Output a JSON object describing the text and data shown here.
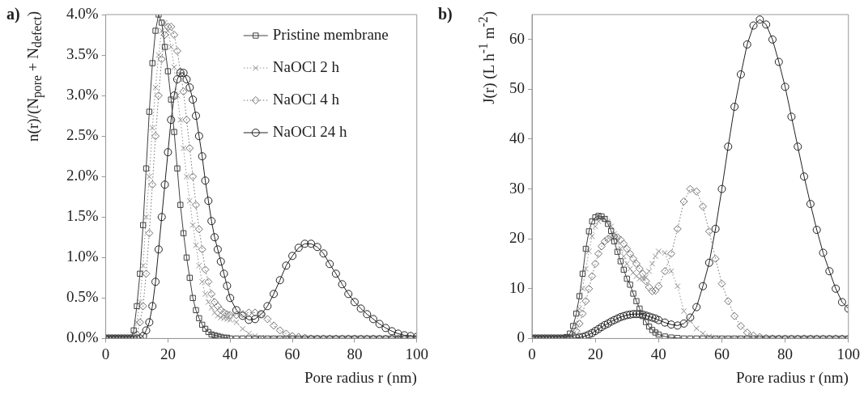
{
  "chart_data": [
    {
      "type": "line",
      "title": "a)",
      "xlabel": "Pore radius r (nm)",
      "ylabel": "n(r)/(N$_{pore}$ + N$_{defect}$)",
      "legend": "top right",
      "x": [
        0,
        1,
        2,
        3,
        4,
        5,
        6,
        7,
        8,
        9,
        10,
        11,
        12,
        13,
        14,
        15,
        16,
        17,
        18,
        19,
        20,
        21,
        22,
        23,
        24,
        25,
        26,
        27,
        28,
        29,
        30,
        31,
        32,
        33,
        34,
        35,
        36,
        37,
        38,
        39,
        40,
        42,
        44,
        46,
        48,
        50,
        52,
        54,
        56,
        58,
        60,
        62,
        64,
        66,
        68,
        70,
        72,
        74,
        76,
        78,
        80,
        82,
        84,
        86,
        88,
        90,
        92,
        94,
        96,
        98,
        100
      ],
      "xlim": [
        0,
        100
      ],
      "xticks": [
        0,
        20,
        40,
        60,
        80,
        100
      ],
      "ylim": [
        0,
        4
      ],
      "yticks": [
        {
          "value": 0,
          "label": "0.0%"
        },
        {
          "value": 0.5,
          "label": "0.5%"
        },
        {
          "value": 1,
          "label": "1.0%"
        },
        {
          "value": 1.5,
          "label": "1.5%"
        },
        {
          "value": 2,
          "label": "2.0%"
        },
        {
          "value": 2.5,
          "label": "2.5%"
        },
        {
          "value": 3,
          "label": "3.0%"
        },
        {
          "value": 3.5,
          "label": "3.5%"
        },
        {
          "value": 4,
          "label": "4.0%"
        }
      ],
      "series": [
        {
          "name": "Pristine membrane",
          "color": "#404040",
          "marker": "square",
          "line_style": "solid",
          "values": [
            0,
            0,
            0,
            0,
            0,
            0,
            0,
            0,
            0,
            0.1,
            0.4,
            0.8,
            1.4,
            2.1,
            2.8,
            3.4,
            3.8,
            4.0,
            3.9,
            3.6,
            3.3,
            2.95,
            2.55,
            2.1,
            1.65,
            1.3,
            1.0,
            0.75,
            0.5,
            0.35,
            0.25,
            0.17,
            0.12,
            0.08,
            0.05,
            0.04,
            0.03,
            0.02,
            0.01,
            0.01,
            0,
            0,
            0,
            0,
            0,
            0,
            0,
            0,
            0,
            0,
            0,
            0,
            0,
            0,
            0,
            0,
            0,
            0,
            0,
            0,
            0,
            0,
            0,
            0,
            0,
            0,
            0,
            0,
            0,
            0,
            0
          ]
        },
        {
          "name": "NaOCl 2 h",
          "color": "#909090",
          "marker": "cross",
          "line_style": "dotted",
          "values": [
            0,
            0,
            0,
            0,
            0,
            0,
            0,
            0,
            0,
            0.05,
            0.2,
            0.45,
            0.9,
            1.5,
            2.0,
            2.6,
            3.1,
            3.5,
            3.8,
            3.9,
            3.8,
            3.6,
            3.35,
            3.0,
            2.7,
            2.35,
            2.0,
            1.7,
            1.4,
            1.15,
            0.9,
            0.7,
            0.55,
            0.45,
            0.38,
            0.32,
            0.28,
            0.26,
            0.25,
            0.24,
            0.23,
            0.2,
            0.12,
            0.06,
            0.03,
            0.01,
            0,
            0,
            0,
            0,
            0,
            0,
            0,
            0,
            0,
            0,
            0,
            0,
            0,
            0,
            0,
            0,
            0,
            0,
            0,
            0,
            0,
            0,
            0,
            0,
            0
          ]
        },
        {
          "name": "NaOCl 4 h",
          "color": "#707070",
          "marker": "diamond",
          "line_style": "dotted",
          "values": [
            0,
            0,
            0,
            0,
            0,
            0,
            0,
            0,
            0,
            0,
            0.05,
            0.2,
            0.4,
            0.8,
            1.3,
            1.9,
            2.5,
            3.0,
            3.45,
            3.75,
            3.85,
            3.85,
            3.75,
            3.55,
            3.3,
            3.05,
            2.7,
            2.35,
            2.0,
            1.65,
            1.35,
            1.1,
            0.85,
            0.7,
            0.55,
            0.45,
            0.4,
            0.35,
            0.32,
            0.3,
            0.29,
            0.29,
            0.3,
            0.32,
            0.32,
            0.3,
            0.24,
            0.16,
            0.1,
            0.06,
            0.03,
            0.02,
            0.01,
            0,
            0,
            0,
            0,
            0,
            0,
            0,
            0,
            0,
            0,
            0,
            0,
            0,
            0,
            0,
            0,
            0,
            0
          ]
        },
        {
          "name": "NaOCl 24 h",
          "color": "#202020",
          "marker": "circle",
          "line_style": "solid",
          "values": [
            0,
            0,
            0,
            0,
            0,
            0,
            0,
            0,
            0,
            0,
            0,
            0,
            0.03,
            0.1,
            0.2,
            0.4,
            0.7,
            1.1,
            1.5,
            1.9,
            2.3,
            2.7,
            3.0,
            3.2,
            3.28,
            3.28,
            3.2,
            3.1,
            2.95,
            2.75,
            2.5,
            2.25,
            1.95,
            1.7,
            1.45,
            1.25,
            1.1,
            0.95,
            0.8,
            0.65,
            0.5,
            0.35,
            0.28,
            0.23,
            0.24,
            0.3,
            0.4,
            0.55,
            0.72,
            0.9,
            1.02,
            1.12,
            1.17,
            1.17,
            1.13,
            1.05,
            0.92,
            0.8,
            0.67,
            0.55,
            0.45,
            0.37,
            0.3,
            0.24,
            0.18,
            0.13,
            0.09,
            0.06,
            0.04,
            0.03,
            0.02
          ]
        }
      ]
    },
    {
      "type": "line",
      "title": "b)",
      "xlabel": "Pore radius r (nm)",
      "ylabel": "J(r) (L h$^{-1}$ m$^{-2}$)",
      "x": [
        0,
        1,
        2,
        3,
        4,
        5,
        6,
        7,
        8,
        9,
        10,
        11,
        12,
        13,
        14,
        15,
        16,
        17,
        18,
        19,
        20,
        21,
        22,
        23,
        24,
        25,
        26,
        27,
        28,
        29,
        30,
        31,
        32,
        33,
        34,
        35,
        36,
        37,
        38,
        39,
        40,
        42,
        44,
        46,
        48,
        50,
        52,
        54,
        56,
        58,
        60,
        62,
        64,
        66,
        68,
        70,
        72,
        74,
        76,
        78,
        80,
        82,
        84,
        86,
        88,
        90,
        92,
        94,
        96,
        98,
        100
      ],
      "xlim": [
        0,
        100
      ],
      "xticks": [
        0,
        20,
        40,
        60,
        80,
        100
      ],
      "ylim": [
        0,
        65
      ],
      "yticks": [
        0,
        10,
        20,
        30,
        40,
        50,
        60
      ],
      "series": [
        {
          "color": "#404040",
          "marker": "square",
          "line_style": "solid",
          "values": [
            0,
            0,
            0,
            0,
            0,
            0,
            0,
            0,
            0,
            0,
            0,
            0.3,
            1,
            2.5,
            5,
            8.5,
            13,
            18,
            21.5,
            23.5,
            24.3,
            24.6,
            24.5,
            24,
            23,
            21.6,
            19.5,
            17.4,
            15.5,
            13.8,
            12,
            10.8,
            9,
            7.5,
            6,
            4.5,
            3.3,
            2.4,
            1.7,
            1.2,
            0.8,
            0.4,
            0.2,
            0.1,
            0,
            0,
            0,
            0,
            0,
            0,
            0,
            0,
            0,
            0,
            0,
            0,
            0,
            0,
            0,
            0,
            0,
            0,
            0,
            0,
            0,
            0,
            0,
            0,
            0,
            0,
            0
          ]
        },
        {
          "color": "#909090",
          "marker": "cross",
          "line_style": "dotted",
          "values": [
            0,
            0,
            0,
            0,
            0,
            0,
            0,
            0,
            0,
            0,
            0,
            0,
            0.3,
            1,
            3,
            6,
            10,
            14,
            17.5,
            20.5,
            22.5,
            23.5,
            24,
            24,
            23.5,
            22.5,
            21,
            19.5,
            18,
            16.5,
            15,
            14,
            13.2,
            12.5,
            12,
            12,
            12.3,
            13.5,
            15,
            16.5,
            17.5,
            17.2,
            13.5,
            10.5,
            5.5,
            3.5,
            2,
            1,
            0.4,
            0.1,
            0,
            0,
            0,
            0,
            0,
            0,
            0,
            0,
            0,
            0,
            0,
            0,
            0,
            0,
            0,
            0,
            0,
            0,
            0,
            0,
            0
          ]
        },
        {
          "color": "#707070",
          "marker": "diamond",
          "line_style": "dotted",
          "values": [
            0,
            0,
            0,
            0,
            0,
            0,
            0,
            0,
            0,
            0,
            0,
            0,
            0,
            0.5,
            1.5,
            3,
            5,
            7.5,
            10,
            12.5,
            15,
            17,
            18.5,
            19.5,
            20,
            20.4,
            20.5,
            20.3,
            19.8,
            19,
            18,
            17,
            16,
            15,
            14,
            13,
            11.5,
            10.3,
            9.5,
            9.6,
            10.5,
            13.5,
            17,
            22,
            27.5,
            30,
            29.5,
            26.5,
            21.5,
            16,
            11,
            7.5,
            4.5,
            2.5,
            1.2,
            0.6,
            0.3,
            0.1,
            0,
            0,
            0,
            0,
            0,
            0,
            0,
            0,
            0,
            0,
            0,
            0,
            0
          ]
        },
        {
          "color": "#202020",
          "marker": "circle",
          "line_style": "solid",
          "values": [
            0,
            0,
            0,
            0,
            0,
            0,
            0,
            0,
            0,
            0,
            0,
            0,
            0,
            0,
            0.1,
            0.2,
            0.3,
            0.5,
            0.8,
            1.1,
            1.5,
            1.9,
            2.3,
            2.7,
            3.0,
            3.4,
            3.7,
            4.0,
            4.3,
            4.5,
            4.7,
            4.8,
            4.9,
            4.9,
            4.9,
            4.8,
            4.6,
            4.4,
            4.2,
            4.0,
            3.7,
            3.2,
            2.8,
            2.6,
            3.0,
            4.2,
            6.3,
            10.5,
            15.2,
            22,
            30,
            38.5,
            46.5,
            53,
            59,
            62.8,
            64,
            63,
            60,
            55.5,
            50.5,
            44.5,
            38.5,
            32.5,
            27,
            21.8,
            17.2,
            13.5,
            10,
            7.3,
            6
          ]
        }
      ]
    }
  ]
}
